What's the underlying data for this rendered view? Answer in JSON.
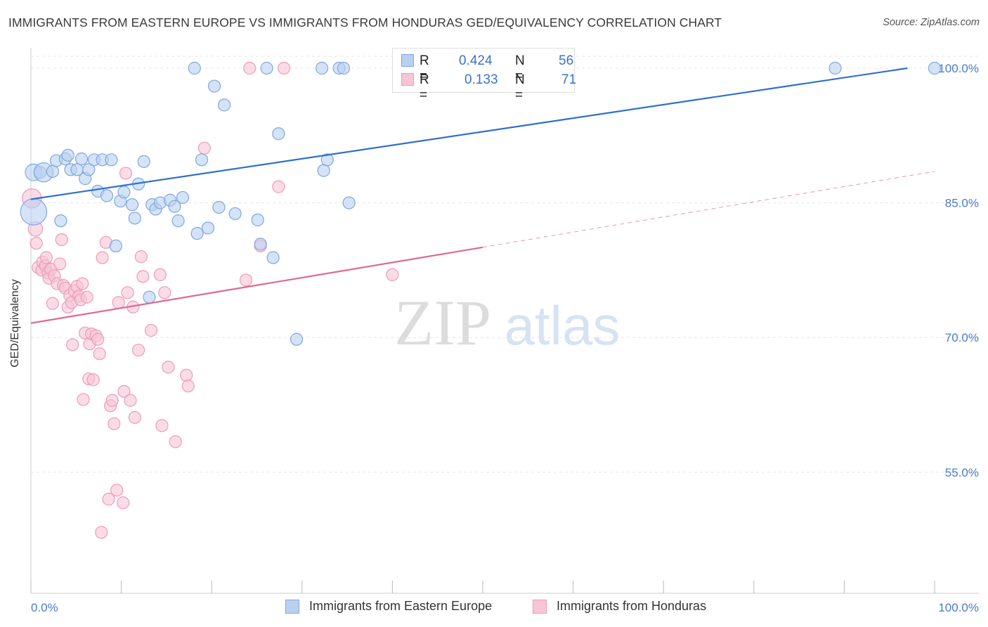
{
  "title": "IMMIGRANTS FROM EASTERN EUROPE VS IMMIGRANTS FROM HONDURAS GED/EQUIVALENCY CORRELATION CHART",
  "source": "Source: ZipAtlas.com",
  "watermark": {
    "zip": "ZIP",
    "atlas": "atlas"
  },
  "legend": {
    "r_label": "R =",
    "n_label": "N =",
    "series_a": {
      "r": "0.424",
      "n": "56"
    },
    "series_b": {
      "r": "0.133",
      "n": "71"
    }
  },
  "bottom_legend": {
    "series_a": "Immigrants from Eastern Europe",
    "series_b": "Immigrants from Honduras"
  },
  "colors": {
    "series_a_fill": "#b9d0f0",
    "series_a_stroke": "#7ea8e0",
    "series_a_line": "#2f6fd0",
    "series_b_fill": "#f7c5d6",
    "series_b_stroke": "#ee9bb8",
    "series_b_line": "#e06890",
    "tick_label": "#4a7cc9",
    "grid": "#e6e6e6"
  },
  "chart_data": {
    "type": "scatter",
    "title": "IMMIGRANTS FROM EASTERN EUROPE VS IMMIGRANTS FROM HONDURAS GED/EQUIVALENCY CORRELATION CHART",
    "xlabel": "",
    "ylabel": "GED/Equivalency",
    "xlim": [
      0,
      100
    ],
    "ylim": [
      40,
      102.5
    ],
    "x_tick_labels": [
      "0.0%",
      "100.0%"
    ],
    "y_ticks": [
      55,
      70,
      85,
      100
    ],
    "y_tick_labels": [
      "55.0%",
      "70.0%",
      "85.0%",
      "100.0%"
    ],
    "grid": true,
    "series": [
      {
        "name": "Immigrants from Eastern Europe",
        "r": 0.424,
        "n": 56,
        "trend": {
          "x": [
            0,
            97
          ],
          "y": [
            85.4,
            100.0
          ],
          "dashed_until": 97
        },
        "points": [
          [
            0.3,
            84.0,
            22
          ],
          [
            0.3,
            88.4,
            14
          ],
          [
            1.0,
            88.4,
            10
          ],
          [
            1.4,
            88.4,
            16
          ],
          [
            2.4,
            88.5,
            10
          ],
          [
            2.8,
            89.7,
            10
          ],
          [
            3.3,
            83.0,
            10
          ],
          [
            3.8,
            89.9,
            10
          ],
          [
            4.1,
            90.3,
            10
          ],
          [
            4.4,
            88.7,
            10
          ],
          [
            5.1,
            88.7,
            10
          ],
          [
            5.6,
            89.9,
            10
          ],
          [
            6.0,
            87.7,
            10
          ],
          [
            6.4,
            88.7,
            10
          ],
          [
            7.0,
            89.8,
            10
          ],
          [
            7.4,
            86.3,
            10
          ],
          [
            7.9,
            89.8,
            10
          ],
          [
            8.4,
            85.8,
            10
          ],
          [
            8.9,
            89.8,
            10
          ],
          [
            9.4,
            80.2,
            10
          ],
          [
            9.9,
            85.2,
            10
          ],
          [
            10.3,
            86.2,
            10
          ],
          [
            11.2,
            84.8,
            10
          ],
          [
            11.5,
            83.3,
            10
          ],
          [
            11.9,
            87.1,
            10
          ],
          [
            12.5,
            89.6,
            10
          ],
          [
            13.1,
            74.5,
            10
          ],
          [
            13.4,
            84.8,
            10
          ],
          [
            13.8,
            84.3,
            10
          ],
          [
            14.3,
            85.0,
            10
          ],
          [
            15.4,
            85.3,
            10
          ],
          [
            15.9,
            84.6,
            10
          ],
          [
            16.3,
            83.0,
            10
          ],
          [
            16.8,
            85.6,
            10
          ],
          [
            18.1,
            100.0,
            10
          ],
          [
            18.4,
            81.6,
            10
          ],
          [
            18.9,
            89.8,
            10
          ],
          [
            19.6,
            82.2,
            10
          ],
          [
            20.3,
            98.0,
            10
          ],
          [
            20.8,
            84.5,
            10
          ],
          [
            21.4,
            95.9,
            10
          ],
          [
            22.6,
            83.8,
            10
          ],
          [
            25.1,
            83.1,
            10
          ],
          [
            25.4,
            80.4,
            10
          ],
          [
            26.1,
            100.0,
            10
          ],
          [
            26.8,
            78.9,
            10
          ],
          [
            27.4,
            92.7,
            10
          ],
          [
            29.4,
            69.8,
            10
          ],
          [
            32.2,
            100.0,
            10
          ],
          [
            32.4,
            88.6,
            10
          ],
          [
            32.8,
            89.8,
            10
          ],
          [
            34.1,
            100.0,
            10
          ],
          [
            34.6,
            100.0,
            10
          ],
          [
            35.2,
            85.0,
            10
          ],
          [
            89.0,
            100.0,
            10
          ],
          [
            100.0,
            100.0,
            10
          ]
        ]
      },
      {
        "name": "Immigrants from Honduras",
        "r": 0.133,
        "n": 71,
        "trend": {
          "x": [
            0,
            100
          ],
          "y": [
            71.6,
            88.5
          ],
          "dashed_after": 50
        },
        "points": [
          [
            0.1,
            85.5,
            16
          ],
          [
            0.5,
            82.1,
            12
          ],
          [
            0.6,
            80.5,
            10
          ],
          [
            0.8,
            77.8,
            10
          ],
          [
            1.2,
            77.5,
            10
          ],
          [
            1.3,
            78.4,
            10
          ],
          [
            1.6,
            78.0,
            10
          ],
          [
            1.7,
            78.9,
            10
          ],
          [
            1.9,
            77.2,
            10
          ],
          [
            2.0,
            76.6,
            10
          ],
          [
            2.2,
            77.6,
            10
          ],
          [
            2.4,
            73.8,
            10
          ],
          [
            2.6,
            76.9,
            10
          ],
          [
            2.9,
            76.0,
            10
          ],
          [
            3.2,
            78.2,
            10
          ],
          [
            3.4,
            80.9,
            10
          ],
          [
            3.6,
            75.8,
            10
          ],
          [
            3.8,
            75.5,
            10
          ],
          [
            4.1,
            73.4,
            10
          ],
          [
            4.3,
            74.7,
            10
          ],
          [
            4.5,
            73.9,
            10
          ],
          [
            4.6,
            69.2,
            10
          ],
          [
            4.8,
            75.2,
            10
          ],
          [
            5.1,
            75.7,
            10
          ],
          [
            5.3,
            74.6,
            10
          ],
          [
            5.5,
            74.2,
            10
          ],
          [
            5.7,
            76.0,
            10
          ],
          [
            5.8,
            63.1,
            10
          ],
          [
            6.0,
            70.5,
            10
          ],
          [
            6.2,
            74.5,
            10
          ],
          [
            6.4,
            65.4,
            10
          ],
          [
            6.5,
            69.3,
            10
          ],
          [
            6.7,
            70.4,
            10
          ],
          [
            6.9,
            65.3,
            10
          ],
          [
            7.2,
            70.2,
            10
          ],
          [
            7.4,
            69.8,
            10
          ],
          [
            7.6,
            68.2,
            10
          ],
          [
            7.8,
            48.3,
            10
          ],
          [
            7.9,
            78.9,
            10
          ],
          [
            8.3,
            80.6,
            10
          ],
          [
            8.6,
            52.0,
            10
          ],
          [
            8.8,
            62.4,
            10
          ],
          [
            9.0,
            63.0,
            10
          ],
          [
            9.2,
            60.4,
            10
          ],
          [
            9.5,
            53.0,
            10
          ],
          [
            9.7,
            73.9,
            10
          ],
          [
            10.2,
            51.6,
            10
          ],
          [
            10.3,
            64.0,
            10
          ],
          [
            10.5,
            88.3,
            10
          ],
          [
            10.7,
            75.0,
            10
          ],
          [
            11.0,
            63.0,
            10
          ],
          [
            11.3,
            73.4,
            10
          ],
          [
            11.5,
            61.1,
            10
          ],
          [
            11.9,
            68.6,
            10
          ],
          [
            12.2,
            79.0,
            10
          ],
          [
            12.4,
            76.8,
            10
          ],
          [
            13.3,
            70.8,
            10
          ],
          [
            14.3,
            77.0,
            10
          ],
          [
            14.5,
            60.2,
            10
          ],
          [
            14.8,
            75.0,
            10
          ],
          [
            15.2,
            66.7,
            10
          ],
          [
            16.0,
            58.4,
            10
          ],
          [
            17.2,
            65.8,
            10
          ],
          [
            17.4,
            64.6,
            10
          ],
          [
            19.2,
            91.1,
            10
          ],
          [
            23.8,
            76.4,
            10
          ],
          [
            24.2,
            100.0,
            10
          ],
          [
            25.4,
            80.2,
            10
          ],
          [
            27.4,
            86.8,
            10
          ],
          [
            28.0,
            100.0,
            10
          ],
          [
            40.0,
            77.0,
            10
          ]
        ]
      }
    ]
  }
}
